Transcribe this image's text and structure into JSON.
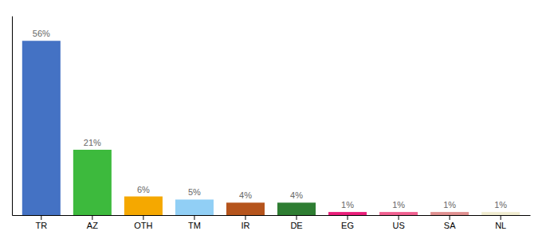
{
  "chart_data": {
    "type": "bar",
    "categories": [
      "TR",
      "AZ",
      "OTH",
      "TM",
      "IR",
      "DE",
      "EG",
      "US",
      "SA",
      "NL"
    ],
    "values": [
      56,
      21,
      6,
      5,
      4,
      4,
      1,
      1,
      1,
      1
    ],
    "value_labels": [
      "56%",
      "21%",
      "6%",
      "5%",
      "4%",
      "4%",
      "1%",
      "1%",
      "1%",
      "1%"
    ],
    "colors": [
      "#4472c4",
      "#3dba3d",
      "#f5a800",
      "#91cff5",
      "#b5541c",
      "#2e7d32",
      "#e91e7a",
      "#f06090",
      "#e09090",
      "#f0ecd0"
    ],
    "ylim": [
      0,
      64
    ],
    "grid": false,
    "data_labels": true,
    "tick_labels": "x"
  }
}
